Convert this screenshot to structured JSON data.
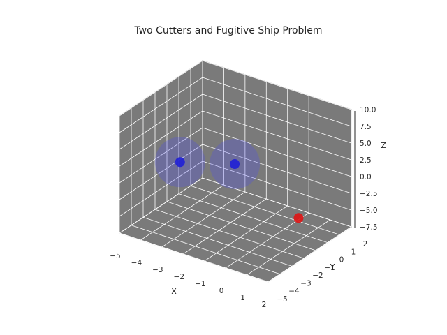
{
  "chart_data": {
    "type": "scatter",
    "projection": "3d",
    "title": "Two Cutters and Fugitive Ship Problem",
    "xlabel": "X",
    "ylabel": "Y",
    "zlabel": "Z",
    "xlim": [
      -5,
      2
    ],
    "ylim": [
      -5,
      2
    ],
    "zlim": [
      -7.5,
      10.0
    ],
    "xticks": [
      "−5",
      "−4",
      "−3",
      "−2",
      "−1",
      "0",
      "1",
      "2"
    ],
    "yticks": [
      "−5",
      "−4",
      "−3",
      "−2",
      "−1",
      "0",
      "1",
      "2"
    ],
    "zticks": [
      "−7.5",
      "−5.0",
      "−2.5",
      "0.0",
      "2.5",
      "5.0",
      "7.5",
      "10.0"
    ],
    "pane_color": "#7a7a7a",
    "grid_color": "#ffffff",
    "grid": true,
    "series": [
      {
        "color": "#1f1fd6",
        "points": [
          {
            "x": -3.6,
            "y": -2.4,
            "z": 1.5
          },
          {
            "x": -2.2,
            "y": -0.3,
            "z": 0.2
          }
        ],
        "sphere_color": "#4a4aef"
      },
      {
        "color": "#e01414",
        "points": [
          {
            "x": 0.3,
            "y": 0.6,
            "z": -6.3
          }
        ]
      }
    ]
  }
}
